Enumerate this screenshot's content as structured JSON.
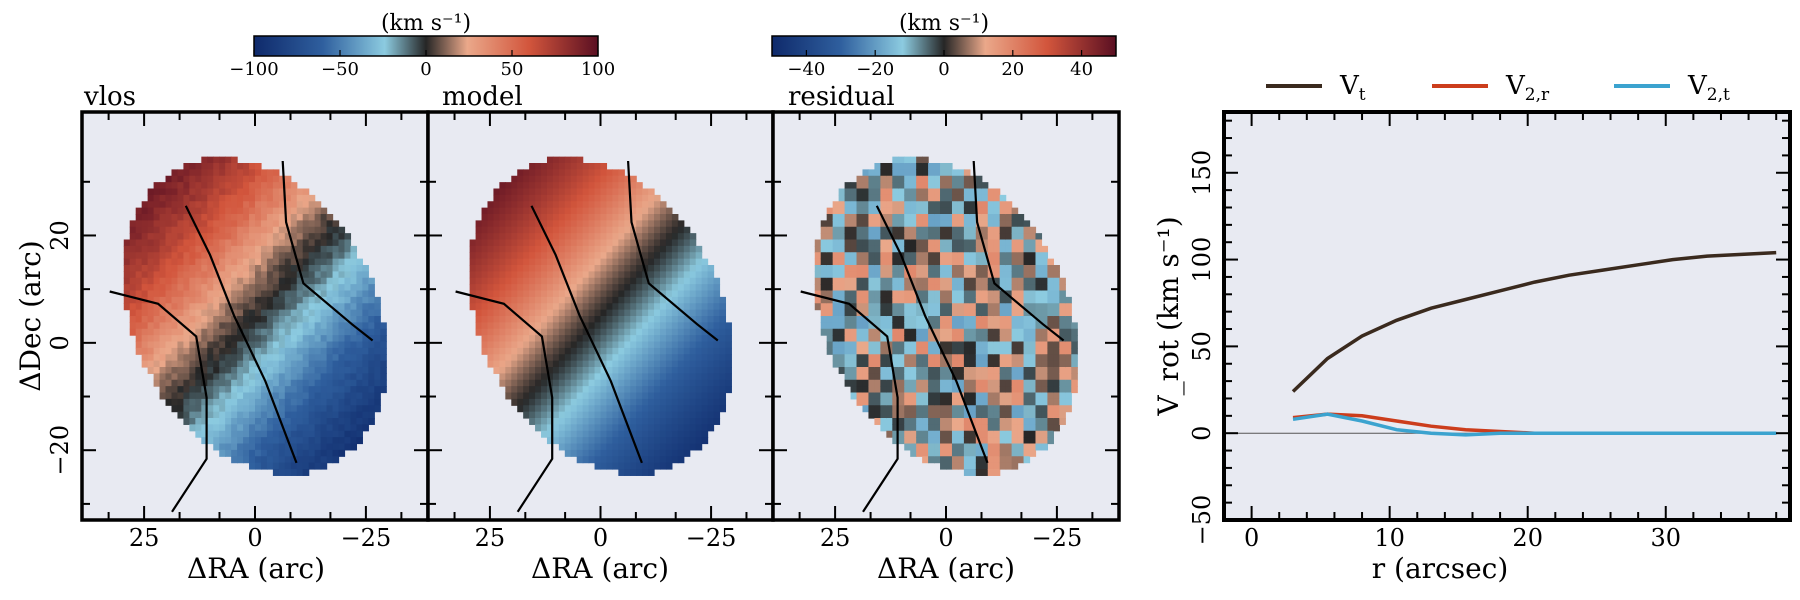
{
  "panels": [
    {
      "label": "vlos",
      "kind": "vlos"
    },
    {
      "label": "model",
      "kind": "model"
    },
    {
      "label": "residual",
      "kind": "residual"
    }
  ],
  "map_axes": {
    "xlabel": "ΔRA (arc)",
    "ylabel": "ΔDec (arc)",
    "xticks": [
      "25",
      "0",
      "−25"
    ],
    "yticks": [
      "20",
      "0",
      "−20"
    ]
  },
  "colorbars": [
    {
      "unit": "(km s⁻¹)",
      "range": [
        -100,
        100
      ],
      "ticks": [
        "−100",
        "−50",
        "0",
        "50",
        "100"
      ]
    },
    {
      "unit": "(km s⁻¹)",
      "range": [
        -50,
        50
      ],
      "ticks": [
        "−40",
        "−20",
        "0",
        "20",
        "40"
      ]
    }
  ],
  "colors": {
    "panel_bg": "#e8eaf2",
    "Vt": "#3a2a1e",
    "V2r": "#cc3d1c",
    "V2t": "#3ba3cf",
    "diverging_low": "#0f2a6b",
    "diverging_mid": "#262626",
    "diverging_high": "#5a0f22"
  },
  "chart_data": {
    "type": "line",
    "xlabel": "r (arcsec)",
    "ylabel": "V_rot (km s⁻¹)",
    "xlim": [
      -2,
      39
    ],
    "ylim": [
      -50,
      185
    ],
    "xticks": [
      0,
      10,
      20,
      30
    ],
    "yticks": [
      -50,
      0,
      50,
      100,
      150
    ],
    "legend_position": "top",
    "series": [
      {
        "name": "Vt",
        "sub": "t",
        "color_key": "Vt",
        "x": [
          3,
          5.5,
          8,
          10.5,
          13,
          15.5,
          18,
          20.5,
          23,
          25.5,
          28,
          30.5,
          33,
          35.5,
          38
        ],
        "y": [
          24,
          43,
          56,
          65,
          72,
          77,
          82,
          87,
          91,
          94,
          97,
          100,
          102,
          103,
          104
        ]
      },
      {
        "name": "V2,r",
        "sub": "2,r",
        "color_key": "V2r",
        "x": [
          3,
          5.5,
          8,
          10.5,
          13,
          15.5,
          18,
          20.5,
          23,
          25.5,
          28,
          30.5,
          33,
          35.5,
          38
        ],
        "y": [
          9,
          11,
          10,
          7,
          4,
          2,
          1,
          0,
          0,
          0,
          0,
          0,
          0,
          0,
          0
        ]
      },
      {
        "name": "V2,t",
        "sub": "2,t",
        "color_key": "V2t",
        "x": [
          3,
          5.5,
          8,
          10.5,
          13,
          15.5,
          18,
          20.5,
          23,
          25.5,
          28,
          30.5,
          33,
          35.5,
          38
        ],
        "y": [
          8,
          11,
          7,
          2,
          0,
          -1,
          0,
          0,
          0,
          0,
          0,
          0,
          0,
          0,
          0
        ]
      }
    ]
  }
}
